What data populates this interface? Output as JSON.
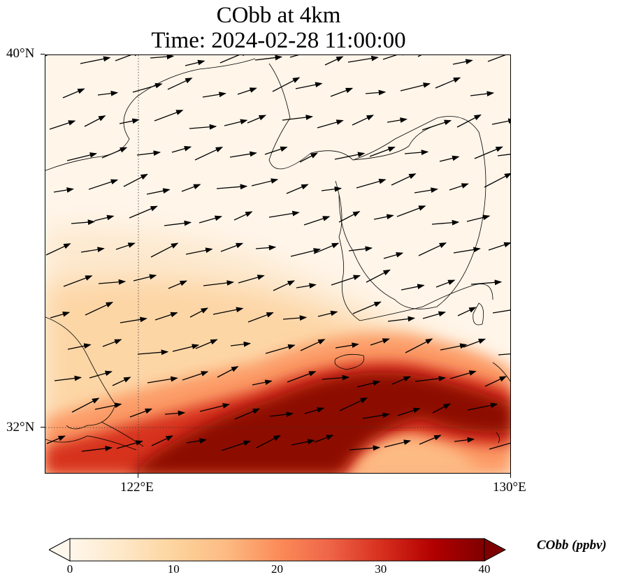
{
  "title": {
    "line1": "CObb at 4km",
    "line2": "Time: 2024-02-28 11:00:00"
  },
  "axes": {
    "lat_labels": [
      "40°N",
      "32°N"
    ],
    "lon_labels": [
      "122°E",
      "130°E"
    ],
    "lon_range": [
      120,
      130
    ],
    "lat_range": [
      31,
      40
    ],
    "gridlines": {
      "lon": [
        122
      ],
      "lat": [
        32
      ],
      "style": "dotted"
    }
  },
  "field": {
    "variable": "CObb",
    "level": "4km",
    "colormap": "OrRd",
    "color_stops": [
      "#fff7ec",
      "#fee8c8",
      "#fdd49e",
      "#fdbb84",
      "#fc8d59",
      "#ef6548",
      "#d7301f",
      "#b30000",
      "#7f0000"
    ],
    "regions": [
      {
        "desc": "northern low background",
        "value": 1
      },
      {
        "desc": "central plume band",
        "value": 12
      },
      {
        "desc": "southern high core",
        "value": 40
      }
    ]
  },
  "colorbar": {
    "label": "CObb (ppbv)",
    "min": 0,
    "max": 40,
    "ticks": [
      "0",
      "10",
      "20",
      "30",
      "40"
    ],
    "extend": "both"
  }
}
